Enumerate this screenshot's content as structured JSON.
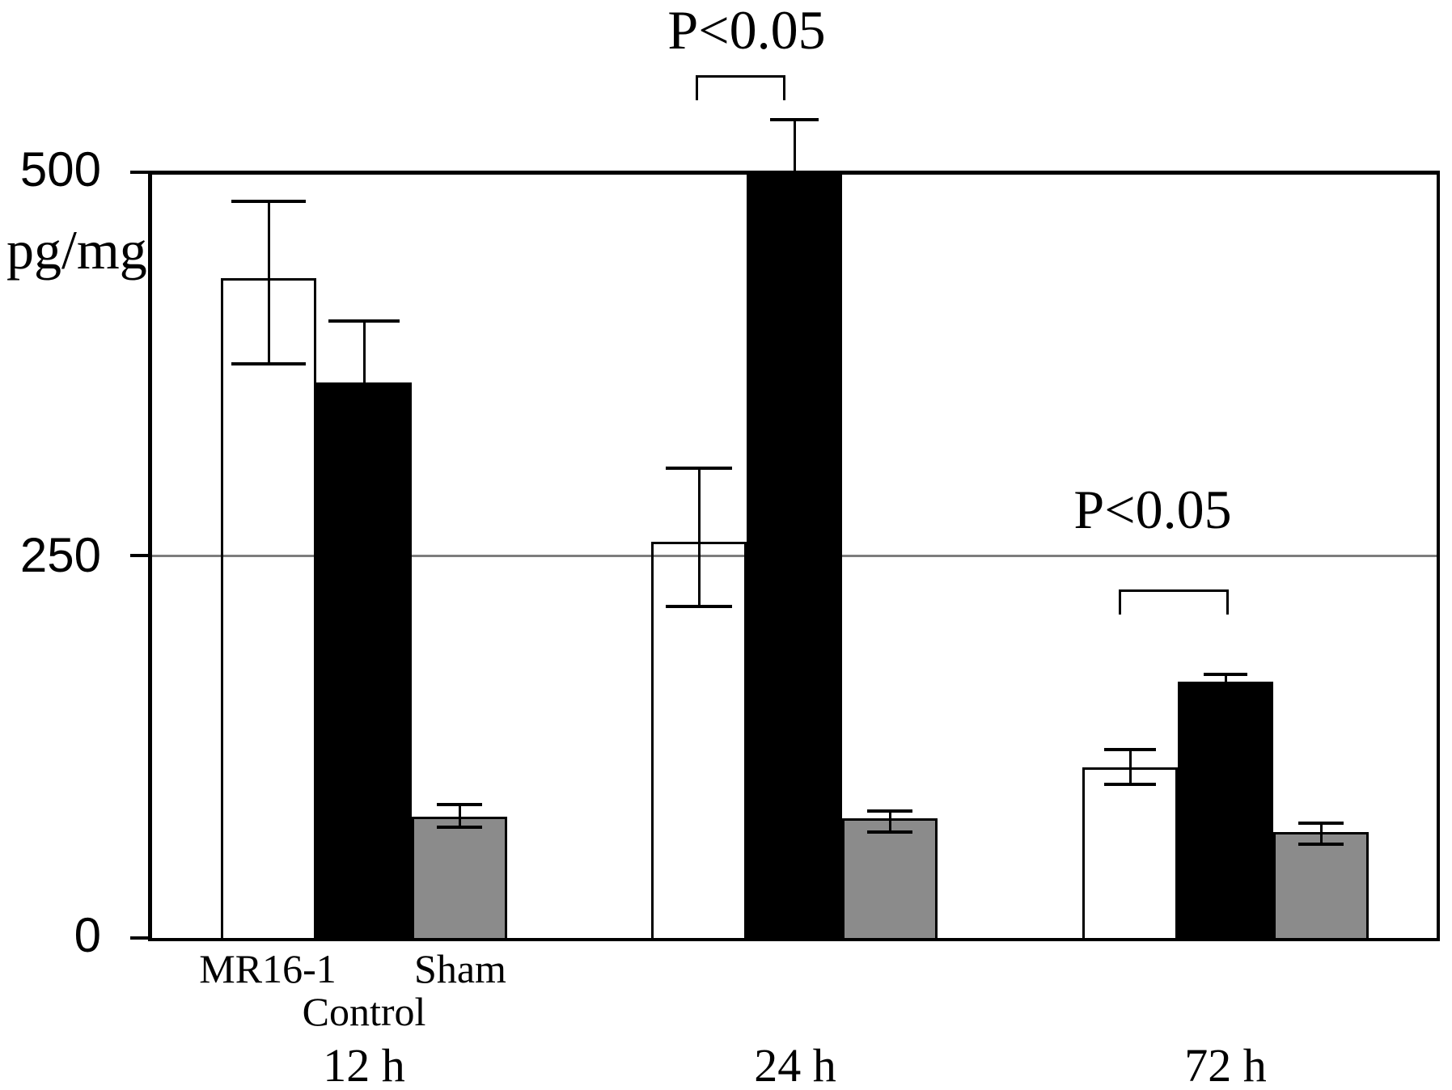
{
  "figure": {
    "y_axis": {
      "unit_label": "pg/mg",
      "ticks": [
        {
          "label": "500",
          "value": 500
        },
        {
          "label": "250",
          "value": 250
        },
        {
          "label": "0",
          "value": 0
        }
      ]
    },
    "condition_labels": {
      "mr16_1": "MR16-1",
      "control": "Control",
      "sham": "Sham"
    },
    "time_labels": {
      "h12": "12 h",
      "h24": "24 h",
      "h72": "72 h"
    },
    "annotations": {
      "sig_24h": "P<0.05",
      "sig_72h": "P<0.05"
    },
    "colors": {
      "mr16_1_fill": "#ffffff",
      "control_fill": "#000000",
      "sham_fill": "#8b8b8b",
      "outline": "#000000",
      "gridline": "#7d7d7d"
    }
  },
  "chart_data": {
    "type": "bar",
    "title": "",
    "xlabel": "",
    "ylabel": "pg/mg",
    "ylim": [
      0,
      500
    ],
    "yticks": [
      0,
      250,
      500
    ],
    "gridlines": [
      250
    ],
    "grid": "single horizontal line at 250",
    "legend_position": "none (condition names printed under 12 h group bars)",
    "categories": [
      "12 h",
      "24 h",
      "72 h"
    ],
    "series": [
      {
        "name": "MR16-1",
        "fill": "#ffffff",
        "values": [
          430,
          258,
          111
        ],
        "error_up": [
          51,
          49,
          13
        ],
        "error_down": [
          57,
          43,
          12
        ]
      },
      {
        "name": "Control",
        "fill": "#000000",
        "values": [
          362,
          500,
          167
        ],
        "error_up": [
          41,
          34,
          6
        ],
        "error_down": [
          41,
          34,
          6
        ]
      },
      {
        "name": "Sham",
        "fill": "#8b8b8b",
        "values": [
          79,
          78,
          69
        ],
        "error_up": [
          9,
          6,
          7
        ],
        "error_down": [
          8,
          10,
          9
        ]
      }
    ],
    "significance": [
      {
        "group": "24 h",
        "between": [
          "MR16-1",
          "Control"
        ],
        "label": "P<0.05"
      },
      {
        "group": "72 h",
        "between": [
          "MR16-1",
          "Control"
        ],
        "label": "P<0.05"
      }
    ]
  }
}
